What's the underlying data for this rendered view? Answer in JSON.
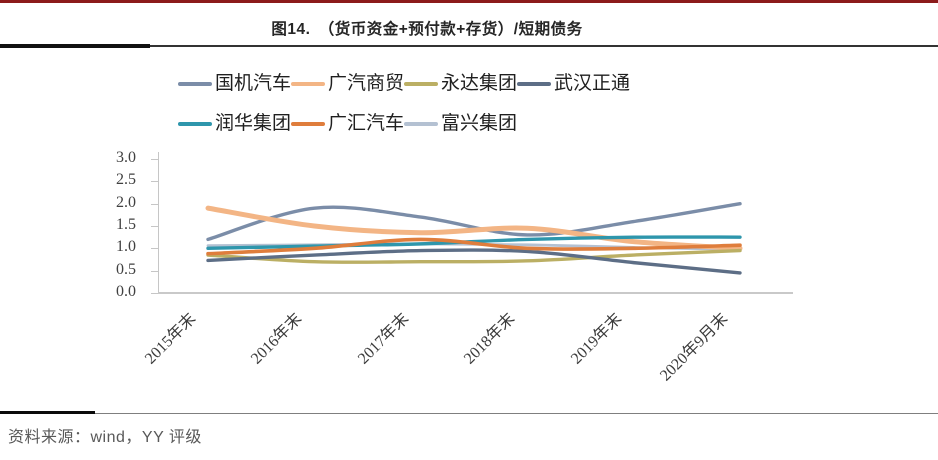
{
  "page": {
    "title": "图14.　（货币资金+预付款+存货）/短期债务",
    "footer": "资料来源：wind，YY 评级"
  },
  "colors": {
    "top_rule": "#8C1B1B",
    "title_rule": "#111111",
    "axis": "#C6C6C6",
    "footer_text": "#595959"
  },
  "chart_data": {
    "type": "line",
    "smoothed": true,
    "title": "（货币资金+预付款+存货）/短期债务",
    "legend_position": "top",
    "grid": false,
    "categories": [
      "2015年末",
      "2016年末",
      "2017年末",
      "2018年末",
      "2019年末",
      "2020年9月末"
    ],
    "ylim": [
      0.0,
      3.0
    ],
    "ytick_labels": [
      "0.0",
      "0.5",
      "1.0",
      "1.5",
      "2.0",
      "2.5",
      "3.0"
    ],
    "series": [
      {
        "name": "国机汽车",
        "color": "#7B8DA8",
        "stroke_width": 3.4,
        "values": [
          1.2,
          1.9,
          1.7,
          1.3,
          1.6,
          2.0
        ]
      },
      {
        "name": "广汽商贸",
        "color": "#F3B585",
        "stroke_width": 5.0,
        "values": [
          1.9,
          1.5,
          1.35,
          1.45,
          1.15,
          1.0
        ]
      },
      {
        "name": "永达集团",
        "color": "#BBAF64",
        "stroke_width": 3.4,
        "values": [
          0.85,
          0.7,
          0.7,
          0.72,
          0.85,
          0.95
        ]
      },
      {
        "name": "武汉正通",
        "color": "#5D6E86",
        "stroke_width": 3.4,
        "values": [
          0.73,
          0.85,
          0.95,
          0.93,
          0.68,
          0.45
        ]
      },
      {
        "name": "润华集团",
        "color": "#2E96AC",
        "stroke_width": 3.4,
        "values": [
          1.0,
          1.05,
          1.1,
          1.2,
          1.25,
          1.25
        ]
      },
      {
        "name": "广汇汽车",
        "color": "#DF7D3C",
        "stroke_width": 3.6,
        "values": [
          0.88,
          1.0,
          1.2,
          1.0,
          1.0,
          1.07
        ]
      },
      {
        "name": "富兴集团",
        "color": "#B4C1D2",
        "stroke_width": 2.8,
        "values": [
          1.06,
          1.08,
          1.1,
          1.08,
          1.02,
          0.98
        ]
      }
    ]
  }
}
